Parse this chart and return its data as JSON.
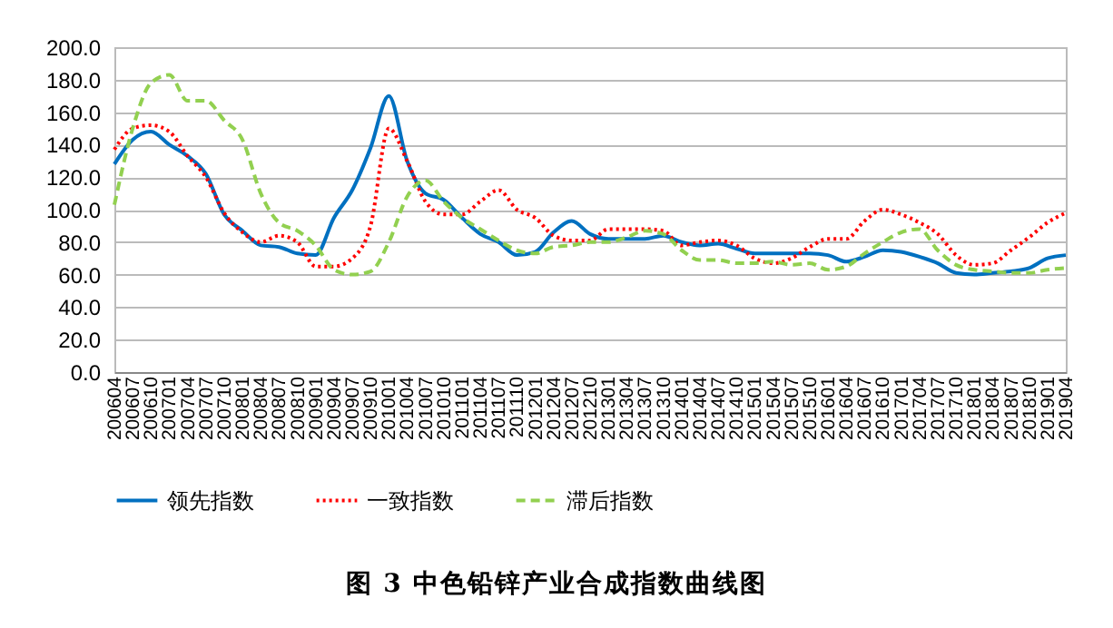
{
  "chart_data": {
    "type": "line",
    "categories": [
      "200604",
      "200607",
      "200610",
      "200701",
      "200704",
      "200707",
      "200710",
      "200801",
      "200804",
      "200807",
      "200810",
      "200901",
      "200904",
      "200907",
      "200910",
      "201001",
      "201004",
      "201007",
      "201010",
      "201101",
      "201104",
      "201107",
      "201110",
      "201201",
      "201204",
      "201207",
      "201210",
      "201301",
      "201304",
      "201307",
      "201310",
      "201401",
      "201404",
      "201407",
      "201410",
      "201501",
      "201504",
      "201507",
      "201510",
      "201601",
      "201604",
      "201607",
      "201610",
      "201701",
      "201704",
      "201707",
      "201710",
      "201801",
      "201804",
      "201807",
      "201810",
      "201901",
      "201904"
    ],
    "series": [
      {
        "name": "领先指数",
        "color": "#0070c0",
        "line_style": "solid",
        "values": [
          128,
          143,
          148,
          140,
          133,
          122,
          97,
          87,
          78,
          77,
          73,
          72,
          95,
          112,
          138,
          170,
          130,
          110,
          106,
          95,
          85,
          80,
          72,
          74,
          86,
          93,
          85,
          82,
          82,
          82,
          84,
          80,
          78,
          79,
          76,
          73,
          73,
          73,
          73,
          72,
          68,
          71,
          75,
          74,
          71,
          67,
          61,
          60,
          61,
          62,
          64,
          70,
          72
        ]
      },
      {
        "name": "一致指数",
        "color": "#ff0000",
        "line_style": "dotted",
        "values": [
          137,
          150,
          152,
          148,
          133,
          120,
          98,
          86,
          80,
          84,
          80,
          65,
          65,
          70,
          90,
          150,
          130,
          105,
          97,
          97,
          105,
          112,
          100,
          95,
          84,
          81,
          81,
          88,
          88,
          88,
          87,
          78,
          80,
          81,
          78,
          70,
          67,
          70,
          77,
          82,
          82,
          93,
          100,
          97,
          92,
          85,
          72,
          66,
          67,
          75,
          83,
          92,
          98
        ]
      },
      {
        "name": "滞后指数",
        "color": "#92d050",
        "line_style": "dashed",
        "values": [
          103,
          150,
          178,
          183,
          167,
          167,
          155,
          143,
          110,
          92,
          87,
          78,
          63,
          60,
          62,
          80,
          108,
          118,
          105,
          95,
          88,
          81,
          75,
          73,
          77,
          78,
          80,
          80,
          83,
          87,
          85,
          75,
          69,
          69,
          67,
          67,
          68,
          66,
          67,
          63,
          65,
          73,
          80,
          86,
          88,
          75,
          66,
          63,
          62,
          61,
          61,
          63,
          64
        ]
      }
    ],
    "ylim": [
      0,
      200
    ],
    "yticks": [
      {
        "value": 0,
        "label": "0.0"
      },
      {
        "value": 20,
        "label": "20.0"
      },
      {
        "value": 40,
        "label": "40.0"
      },
      {
        "value": 60,
        "label": "60.0"
      },
      {
        "value": 80,
        "label": "80.0"
      },
      {
        "value": 100,
        "label": "100.0"
      },
      {
        "value": 120,
        "label": "120.0"
      },
      {
        "value": 140,
        "label": "140.0"
      },
      {
        "value": 160,
        "label": "160.0"
      },
      {
        "value": 180,
        "label": "180.0"
      },
      {
        "value": 200,
        "label": "200.0"
      }
    ],
    "grid": "y",
    "legend": "bottom",
    "annotations": [
      "图 3  中色铅锌产业合成指数曲线图"
    ]
  }
}
